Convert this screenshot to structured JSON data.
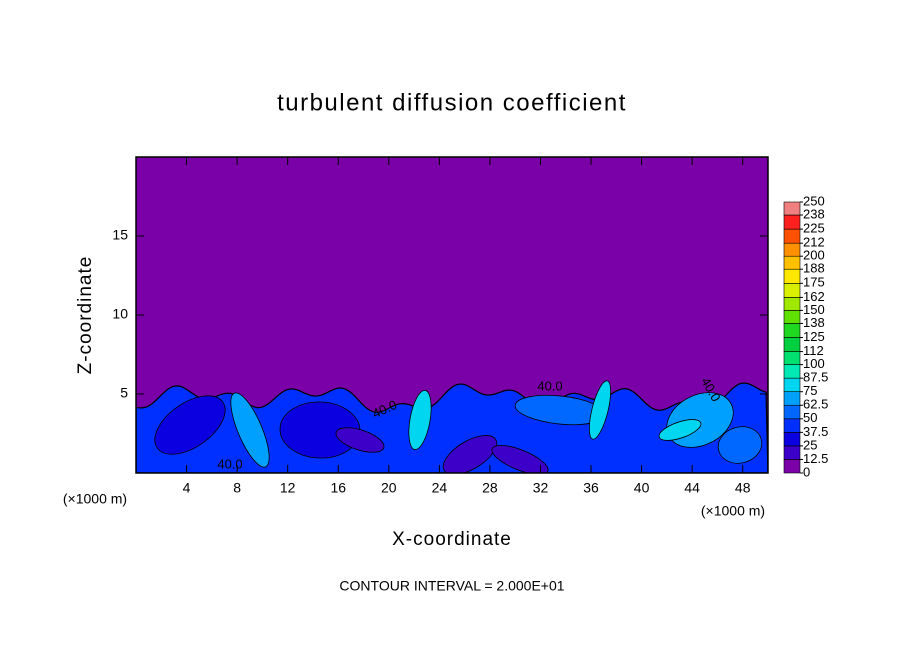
{
  "chart_data": {
    "type": "contour",
    "title": "turbulent diffusion coefficient",
    "x_label": "X-coordinate",
    "y_label": "Z-coordinate",
    "x_unit_label": "(×1000 m)",
    "y_unit_label": "(×1000 m)",
    "footer": "CONTOUR INTERVAL = 2.000E+01",
    "contour_labels": [
      "40.0",
      "40.0",
      "40.0",
      "40.0"
    ],
    "xlim": [
      0,
      50
    ],
    "ylim": [
      0,
      20
    ],
    "xticks": [
      4,
      8,
      12,
      16,
      20,
      24,
      28,
      32,
      36,
      40,
      44,
      48
    ],
    "yticks": [
      5,
      10,
      15
    ],
    "colorbar": {
      "levels": [
        0,
        12.5,
        25,
        37.5,
        50,
        62.5,
        75,
        87.5,
        100,
        112,
        125,
        138,
        150,
        162,
        175,
        188,
        200,
        212,
        225,
        238,
        250
      ],
      "colors": [
        "#7a00a8",
        "#3c00c8",
        "#0a00e0",
        "#0030ff",
        "#0068ff",
        "#00a0ff",
        "#00d6f0",
        "#00e8b4",
        "#00e070",
        "#00d040",
        "#20d820",
        "#60e000",
        "#a0e800",
        "#d8f000",
        "#ffe800",
        "#ffc000",
        "#ff9000",
        "#ff5000",
        "#ff2020",
        "#f08080"
      ]
    }
  }
}
